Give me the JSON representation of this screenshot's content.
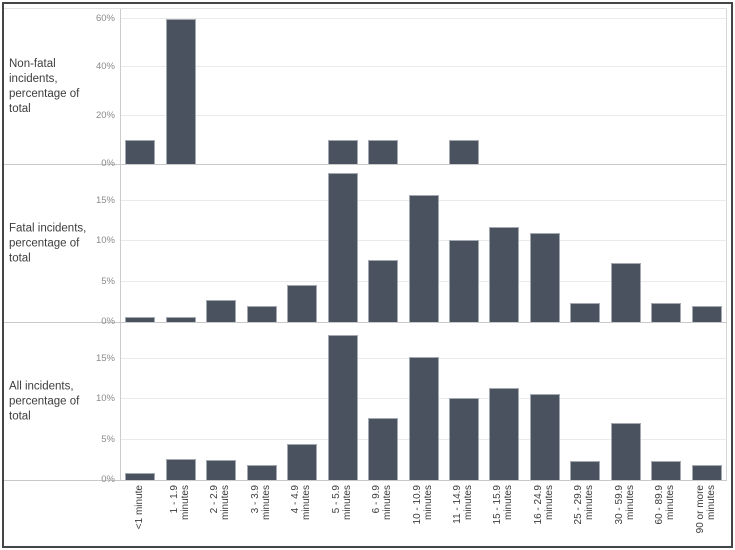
{
  "chart_data": {
    "type": "bar",
    "title": "",
    "xlabel": "",
    "ylabel_format": "percent",
    "grid": true,
    "legend_position": "none",
    "categories": [
      "<1 minute",
      "1 - 1.9\nminutes",
      "2 - 2.9\nminutes",
      "3 - 3.9\nminutes",
      "4 - 4.9\nminutes",
      "5 - 5.9\nminutes",
      "6 - 9.9\nminutes",
      "10 - 10.9\nminutes",
      "11 - 14.9\nminutes",
      "15 - 15.9\nminutes",
      "16 - 24.9\nminutes",
      "25 - 29.9\nminutes",
      "30 - 59.9\nminutes",
      "60 - 89.9\nminutes",
      "90 or more\nminutes"
    ],
    "series": [
      {
        "name": "Non-fatal\nincidents,\npercentage of\ntotal",
        "values": [
          10,
          60,
          0,
          0,
          0,
          10,
          10,
          0,
          10,
          0,
          0,
          0,
          0,
          0,
          0
        ],
        "yticks": [
          0,
          20,
          40,
          60
        ],
        "ylim": [
          0,
          64
        ]
      },
      {
        "name": "Fatal incidents,\npercentage of\ntotal",
        "values": [
          0.6,
          0.6,
          2.7,
          2.0,
          4.6,
          18.4,
          7.7,
          15.7,
          10.2,
          11.8,
          11.0,
          2.4,
          7.3,
          2.4,
          2.0
        ],
        "yticks": [
          0,
          5,
          10,
          15
        ],
        "ylim": [
          0,
          19.4
        ]
      },
      {
        "name": "All incidents,\npercentage of\ntotal",
        "values": [
          0.9,
          2.6,
          2.5,
          1.9,
          4.4,
          17.9,
          7.7,
          15.2,
          10.2,
          11.4,
          10.6,
          2.3,
          7.1,
          2.4,
          1.9
        ],
        "yticks": [
          0,
          5,
          10,
          15
        ],
        "ylim": [
          0,
          19.4
        ]
      }
    ],
    "colors": {
      "bar_fill": "#4a515f",
      "bar_border": "#a3a8b1",
      "gridline": "#eaeaea",
      "panel_divider": "#c9c9c9",
      "tick_text": "#8a8a8a",
      "label_text": "#3d3d3d"
    },
    "tick_suffix": "%"
  }
}
